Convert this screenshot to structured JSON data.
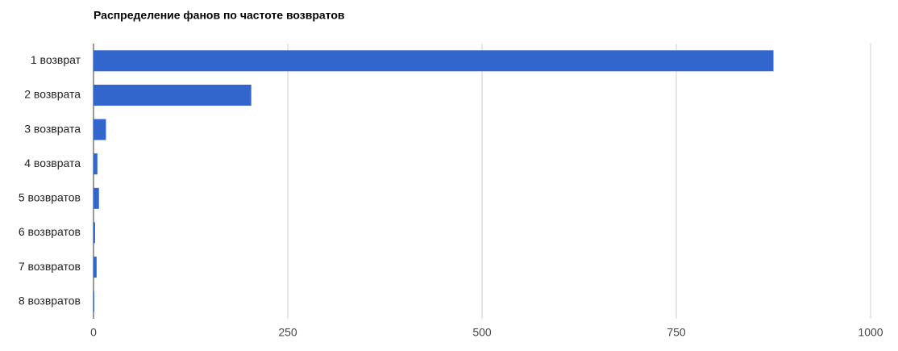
{
  "chart_data": {
    "type": "bar",
    "orientation": "horizontal",
    "title": "Распределение фанов по частоте возвратов",
    "categories": [
      "1 возврат",
      "2 возврата",
      "3 возврата",
      "4 возврата",
      "5 возвратов",
      "6 возвратов",
      "7 возвратов",
      "8 возвратов"
    ],
    "values": [
      875,
      203,
      16,
      5,
      7,
      2,
      4,
      1
    ],
    "color": "#3366cc",
    "xlim": [
      0,
      1000
    ],
    "xticks": [
      0,
      250,
      500,
      750,
      1000
    ],
    "grid": true
  }
}
